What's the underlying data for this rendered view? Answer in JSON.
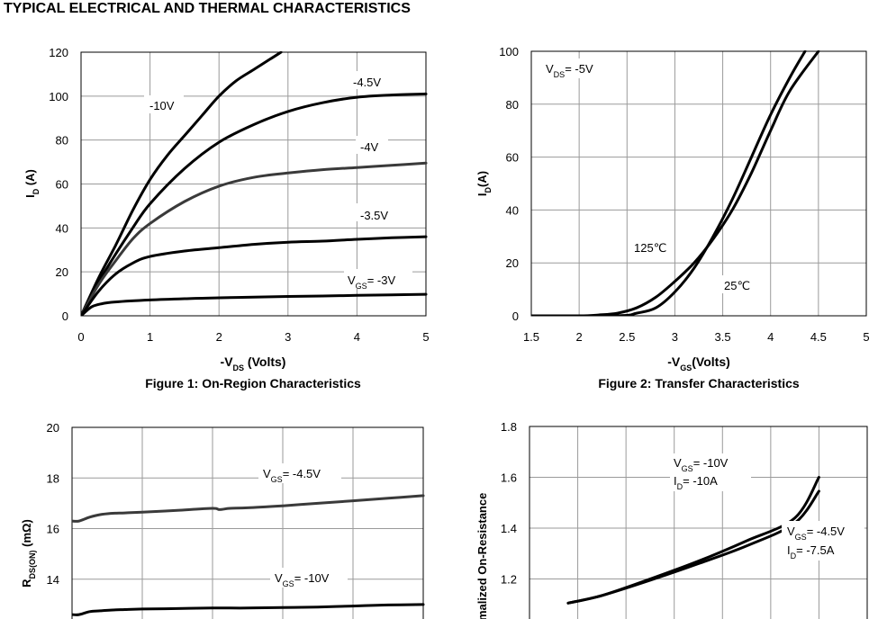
{
  "page_title": "TYPICAL ELECTRICAL AND THERMAL CHARACTERISTICS",
  "colors": {
    "curve_dark": "#000000",
    "curve_gray": "#3a3a3a",
    "grid": "#9a9a9a"
  },
  "chart_data": [
    {
      "id": "fig1",
      "type": "line",
      "caption": "Figure 1: On-Region Characteristics",
      "xlabel": "-VDS (Volts)",
      "ylabel": "ID (A)",
      "xlim": [
        0,
        5
      ],
      "ylim": [
        0,
        120
      ],
      "xticks": [
        0,
        1,
        2,
        3,
        4,
        5
      ],
      "yticks": [
        0,
        20,
        40,
        60,
        80,
        100,
        120
      ],
      "grid": true,
      "series": [
        {
          "name": "-10V",
          "label": "-10V",
          "color": "#000000",
          "x": [
            0,
            0.25,
            0.5,
            0.75,
            1,
            1.25,
            1.5,
            1.75,
            2,
            2.25,
            2.5,
            2.75,
            2.9
          ],
          "y": [
            0,
            17,
            32,
            48,
            62,
            73,
            82,
            91,
            100,
            107,
            112,
            117,
            120
          ]
        },
        {
          "name": "-4.5V",
          "label": "-4.5V",
          "color": "#000000",
          "x": [
            0,
            0.25,
            0.5,
            0.75,
            1,
            1.5,
            2,
            2.5,
            3,
            3.5,
            4,
            4.5,
            5
          ],
          "y": [
            0,
            15,
            28,
            40,
            51,
            67,
            79,
            87,
            93,
            97,
            99.5,
            100.5,
            101
          ]
        },
        {
          "name": "-4V",
          "label": "-4V",
          "color": "#3a3a3a",
          "x": [
            0,
            0.25,
            0.5,
            0.75,
            1,
            1.5,
            2,
            2.5,
            3,
            3.5,
            4,
            4.5,
            5
          ],
          "y": [
            0,
            14,
            25,
            35,
            42,
            52,
            59,
            63,
            65,
            66.5,
            67.5,
            68.5,
            69.5
          ]
        },
        {
          "name": "-3.5V",
          "label": "-3.5V",
          "color": "#000000",
          "x": [
            0,
            0.25,
            0.5,
            0.75,
            1,
            1.5,
            2,
            2.5,
            3,
            3.5,
            4,
            4.5,
            5
          ],
          "y": [
            0,
            11,
            19,
            24,
            27,
            29.5,
            31,
            32.5,
            33.5,
            34,
            34.8,
            35.5,
            36
          ]
        },
        {
          "name": "-3V",
          "label": "VGS= -3V",
          "color": "#000000",
          "x": [
            0,
            0.15,
            0.3,
            0.5,
            1,
            1.5,
            2,
            2.5,
            3,
            3.5,
            4,
            4.5,
            5
          ],
          "y": [
            0,
            4,
            5.5,
            6.3,
            7.2,
            7.8,
            8.2,
            8.5,
            8.8,
            9.0,
            9.3,
            9.5,
            9.8
          ]
        }
      ]
    },
    {
      "id": "fig2",
      "type": "line",
      "caption": "Figure 2: Transfer Characteristics",
      "xlabel": "-VGS(Volts)",
      "ylabel": "ID(A)",
      "xlim": [
        1.5,
        5
      ],
      "ylim": [
        0,
        100
      ],
      "xticks": [
        1.5,
        2,
        2.5,
        3,
        3.5,
        4,
        4.5,
        5
      ],
      "yticks": [
        0,
        20,
        40,
        60,
        80,
        100
      ],
      "grid": true,
      "annotation": "VDS= -5V",
      "series": [
        {
          "name": "125℃",
          "label": "125℃",
          "color": "#000000",
          "x": [
            1.5,
            2.0,
            2.2,
            2.4,
            2.6,
            2.8,
            3.0,
            3.2,
            3.4,
            3.6,
            3.8,
            4.0,
            4.2,
            4.5
          ],
          "y": [
            0,
            0,
            0.3,
            1,
            3,
            7,
            13,
            20,
            29,
            40,
            54,
            70,
            85,
            100
          ]
        },
        {
          "name": "25℃",
          "label": "25℃",
          "color": "#000000",
          "x": [
            1.5,
            2.4,
            2.6,
            2.8,
            3.0,
            3.2,
            3.4,
            3.6,
            3.8,
            4.0,
            4.2,
            4.36
          ],
          "y": [
            0,
            0,
            1,
            3,
            9,
            18,
            30,
            44,
            60,
            76,
            90,
            100
          ]
        }
      ]
    },
    {
      "id": "fig3",
      "type": "line",
      "xlabel": "",
      "ylabel": "RDS(ON) (mΩ)",
      "xlim": [
        0,
        5
      ],
      "ylim": [
        12,
        20
      ],
      "yticks": [
        14,
        16,
        18,
        20
      ],
      "grid": true,
      "series": [
        {
          "name": "VGS= -4.5V",
          "label": "VGS= -4.5V",
          "color": "#3a3a3a",
          "x": [
            0,
            0.1,
            0.25,
            0.4,
            0.55,
            0.75,
            1,
            1.5,
            2,
            2.1,
            2.25,
            2.5,
            3,
            3.5,
            4,
            4.5,
            5
          ],
          "y": [
            16.3,
            16.3,
            16.45,
            16.55,
            16.6,
            16.62,
            16.65,
            16.72,
            16.8,
            16.75,
            16.8,
            16.82,
            16.9,
            17.0,
            17.1,
            17.2,
            17.3
          ]
        },
        {
          "name": "VGS= -10V",
          "label": "VGS= -10V",
          "color": "#000000",
          "x": [
            0,
            0.1,
            0.25,
            0.4,
            0.55,
            0.75,
            1,
            1.5,
            2,
            2.5,
            3,
            3.5,
            4,
            4.5,
            5
          ],
          "y": [
            12.6,
            12.6,
            12.72,
            12.75,
            12.78,
            12.8,
            12.82,
            12.84,
            12.86,
            12.86,
            12.88,
            12.9,
            12.94,
            12.98,
            13.0
          ]
        }
      ]
    },
    {
      "id": "fig4",
      "type": "line",
      "xlabel": "",
      "ylabel": "Normalized On-Resistance",
      "ylabel_visible": "malized On-Resistance",
      "xlim": [
        0,
        7
      ],
      "ylim": [
        1.0,
        1.8
      ],
      "yticks": [
        1.2,
        1.4,
        1.6,
        1.8
      ],
      "grid": true,
      "annotations": [
        {
          "line1": "VGS= -10V",
          "line2": "ID= -10A"
        },
        {
          "line1": "VGS= -4.5V",
          "line2": "ID= -7.5A"
        }
      ],
      "series": [
        {
          "name": "VGS= -10V, ID= -10A",
          "color": "#000000",
          "x": [
            0.8,
            1.5,
            2.5,
            3.5,
            4.5,
            5.5,
            6.0
          ],
          "y": [
            1.105,
            1.135,
            1.2,
            1.27,
            1.35,
            1.44,
            1.6
          ]
        },
        {
          "name": "VGS= -4.5V, ID= -7.5A",
          "color": "#000000",
          "x": [
            0.8,
            1.5,
            2.5,
            3.5,
            4.5,
            5.5,
            6.0
          ],
          "y": [
            1.105,
            1.135,
            1.195,
            1.26,
            1.33,
            1.42,
            1.545
          ]
        }
      ]
    }
  ],
  "texts": {
    "fig1_caption": "Figure 1: On-Region Characteristics",
    "fig2_caption": "Figure 2: Transfer Characteristics",
    "fig2_annotation": "VDS= -5V"
  }
}
